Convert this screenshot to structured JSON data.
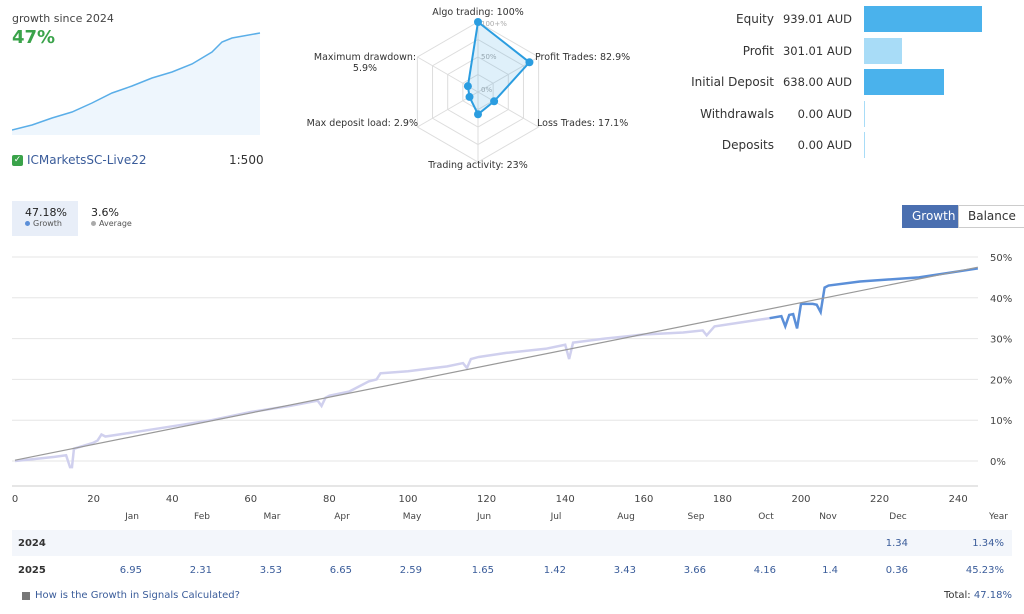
{
  "summary": {
    "growth_title": "growth since 2024",
    "growth_value": "47%",
    "server": "ICMarketsSC-Live22",
    "leverage": "1:500"
  },
  "radar": {
    "labels": {
      "algo": "Algo trading: 100%",
      "profit": "Profit Trades: 82.9%",
      "loss": "Loss Trades: 17.1%",
      "activity": "Trading activity: 23%",
      "load": "Max deposit load: 2.9%",
      "drawdown_1": "Maximum drawdown:",
      "drawdown_2": "5.9%"
    },
    "scale": [
      "100+%",
      "50%",
      "0%"
    ],
    "values": {
      "algo": 100,
      "profit": 82.9,
      "loss": 17.1,
      "activity": 23,
      "load": 2.9,
      "drawdown": 5.9
    },
    "color": "#2b9de0"
  },
  "stats": [
    {
      "label": "Equity",
      "value": "939.01 AUD",
      "fraction": 1.0,
      "color": "#4ab2ec"
    },
    {
      "label": "Profit",
      "value": "301.01 AUD",
      "fraction": 0.32,
      "color": "#a8dcf7"
    },
    {
      "label": "Initial Deposit",
      "value": "638.00 AUD",
      "fraction": 0.68,
      "color": "#4ab2ec"
    },
    {
      "label": "Withdrawals",
      "value": "0.00 AUD",
      "fraction": 0,
      "color": "#a8dcf7"
    },
    {
      "label": "Deposits",
      "value": "0.00 AUD",
      "fraction": 0,
      "color": "#a8dcf7"
    }
  ],
  "tabs": [
    {
      "value": "47.18%",
      "label": "Growth"
    },
    {
      "value": "3.6%",
      "label": "Average"
    }
  ],
  "toggle": {
    "growth": "Growth",
    "balance": "Balance"
  },
  "chart_data": {
    "type": "line",
    "xlim": [
      0,
      245
    ],
    "ylim": [
      -5,
      52
    ],
    "x_ticks": [
      0,
      20,
      40,
      60,
      80,
      100,
      120,
      140,
      160,
      180,
      200,
      220,
      240
    ],
    "y_ticks": [
      "0%",
      "10%",
      "20%",
      "30%",
      "40%",
      "50%"
    ],
    "series": [
      {
        "color": "#d0d0ee",
        "x": [
          0,
          5,
          10,
          13,
          14,
          14.5,
          15,
          20,
          21,
          22,
          23,
          30,
          40,
          50,
          60,
          70,
          77,
          78,
          79,
          80,
          85,
          90,
          92,
          93,
          100,
          110,
          114,
          115,
          116,
          118,
          125,
          135,
          140,
          141,
          142,
          150,
          160,
          170,
          175,
          176,
          178,
          185,
          192
        ],
        "y": [
          0,
          0.5,
          1,
          1.4,
          -1.5,
          -1.5,
          3,
          4.5,
          5,
          6.5,
          6,
          7,
          8.5,
          10,
          12,
          13.5,
          14.8,
          13.5,
          15.5,
          16,
          17,
          19.5,
          20,
          21.5,
          22,
          23.2,
          24,
          22.8,
          25,
          25.5,
          26.5,
          27.5,
          28.5,
          25,
          29,
          30,
          31,
          31.5,
          32,
          30.8,
          33,
          34,
          35
        ]
      },
      {
        "color": "#5b8fd8",
        "x": [
          192,
          195,
          196,
          197,
          198,
          199,
          200,
          203,
          204,
          205,
          206,
          207,
          215,
          230,
          245
        ],
        "y": [
          35,
          35.5,
          33,
          35.8,
          36,
          32.5,
          38.5,
          38.5,
          38.3,
          36.5,
          42.5,
          43,
          44,
          45,
          47.2
        ]
      },
      {
        "color": "#999999",
        "x": [
          0,
          245
        ],
        "y": [
          0.2,
          47.5
        ]
      }
    ]
  },
  "months": [
    "Jan",
    "Feb",
    "Mar",
    "Apr",
    "May",
    "Jun",
    "Jul",
    "Aug",
    "Sep",
    "Oct",
    "Nov",
    "Dec",
    "Year"
  ],
  "years": [
    {
      "year": "2024",
      "values": [
        "",
        "",
        "",
        "",
        "",
        "",
        "",
        "",
        "",
        "",
        "",
        "1.34",
        "1.34%"
      ]
    },
    {
      "year": "2025",
      "values": [
        "6.95",
        "2.31",
        "3.53",
        "6.65",
        "2.59",
        "1.65",
        "1.42",
        "3.43",
        "3.66",
        "4.16",
        "1.4",
        "0.36",
        "45.23%"
      ]
    }
  ],
  "footer": {
    "link": "How is the Growth in Signals Calculated?",
    "total_label": "Total:",
    "total_value": "47.18%"
  }
}
